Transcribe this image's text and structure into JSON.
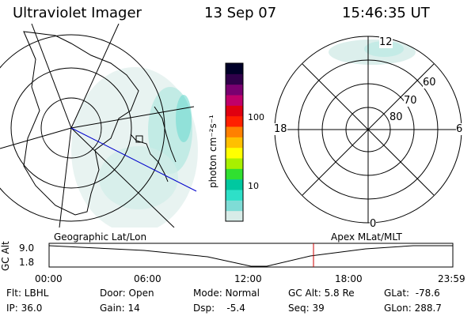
{
  "header": {
    "instrument": "Ultraviolet Imager",
    "date": "13 Sep 07",
    "time": "15:46:35 UT"
  },
  "colorbar": {
    "label": "photon cm⁻²s⁻¹",
    "ticks": [
      "100",
      "10"
    ],
    "scale": "log",
    "colors": [
      "#d8ece8",
      "#7fdcd6",
      "#2ee0c8",
      "#00c8a0",
      "#30e030",
      "#a8f000",
      "#ffff00",
      "#ffc000",
      "#ff8000",
      "#ff2000",
      "#e00010",
      "#c0006a",
      "#7a0070",
      "#30004a",
      "#000028"
    ]
  },
  "left_panel": {
    "label": "Geographic Lat/Lon"
  },
  "right_panel": {
    "label": "Apex MLat/MLT",
    "mlt_labels": [
      "12",
      "18",
      "6",
      "0"
    ],
    "lat_labels": [
      "60",
      "70",
      "80"
    ]
  },
  "altitude_plot": {
    "ylabel": "GC Alt",
    "yticks": [
      "9.0",
      "1.8"
    ],
    "xticks": [
      "00:00",
      "06:00",
      "12:00",
      "18:00",
      "23:59"
    ],
    "current_marker_time": "15:46",
    "marker_color": "#cc0000"
  },
  "status": {
    "flt": "Flt: LBHL",
    "ip": "IP: 36.0",
    "door": "Door: Open",
    "gain": "Gain: 14",
    "mode": "Mode: Normal",
    "dsp": "Dsp:    -5.4",
    "gc_alt": "GC Alt: 5.8 Re",
    "seq": "Seq: 39",
    "glat": "GLat:  -78.6",
    "glon": "GLon: 288.7"
  }
}
